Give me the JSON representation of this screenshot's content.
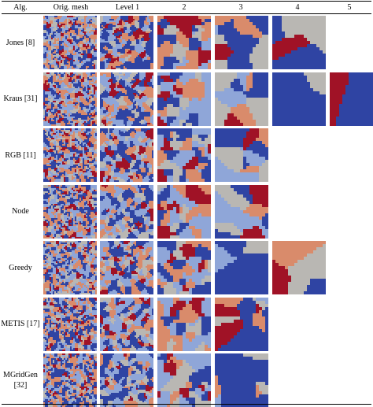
{
  "table": {
    "headers": [
      "Alg.",
      "Orig. mesh",
      "Level 1",
      "2",
      "3",
      "4",
      "5"
    ],
    "rows": [
      {
        "label": "Jones [8]",
        "levels": [
          "orig",
          "1",
          "2",
          "3",
          "4"
        ]
      },
      {
        "label": "Kraus [31]",
        "levels": [
          "orig",
          "1",
          "2",
          "3",
          "4",
          "5"
        ]
      },
      {
        "label": "RGB [11]",
        "levels": [
          "orig",
          "1",
          "2",
          "3"
        ]
      },
      {
        "label": "Node",
        "levels": [
          "orig",
          "1",
          "2",
          "3"
        ]
      },
      {
        "label": "Greedy",
        "levels": [
          "orig",
          "1",
          "2",
          "3",
          "4"
        ]
      },
      {
        "label": "METIS [17]",
        "levels": [
          "orig",
          "1",
          "2",
          "3"
        ]
      },
      {
        "label": "MGridGen\n[32]",
        "levels": [
          "orig",
          "1",
          "2",
          "3"
        ]
      }
    ]
  },
  "palette": {
    "dark_blue": "#2f44a3",
    "light_blue": "#8fa6d8",
    "salmon": "#d98b6b",
    "dark_red": "#a01226",
    "gray": "#b9b7b3"
  }
}
